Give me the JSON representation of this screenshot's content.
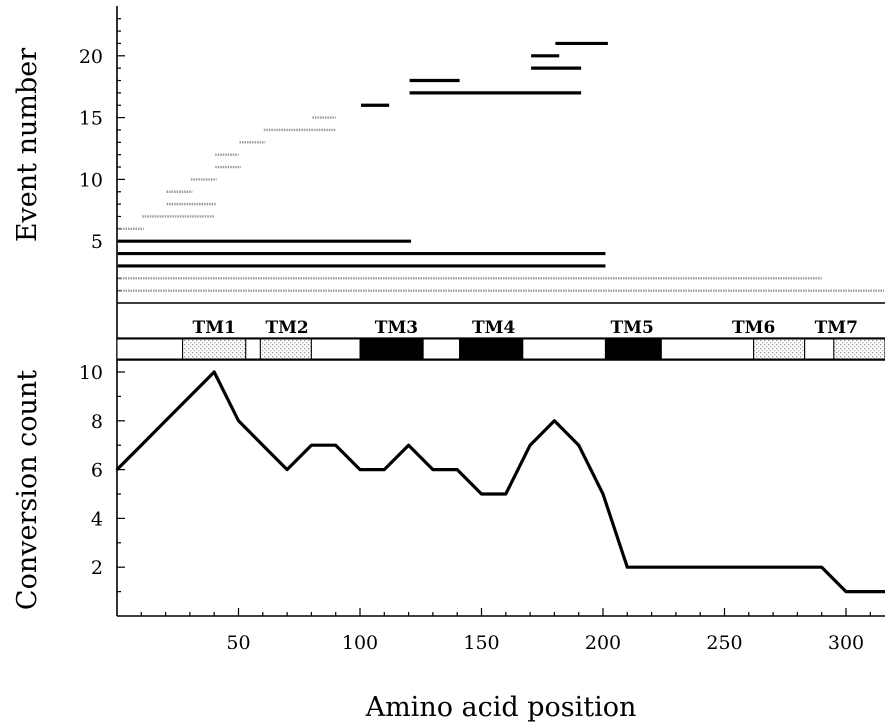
{
  "chart_data": [
    {
      "type": "line",
      "role": "event-segments",
      "ylabel": "Event number",
      "xlim": [
        0,
        317
      ],
      "ylim": [
        0,
        24
      ],
      "yticks": [
        "5",
        "10",
        "15",
        "20"
      ],
      "ytick_values": [
        5,
        10,
        15,
        20
      ],
      "grid": false,
      "dark_events": [
        {
          "event": 21,
          "x": [
            180,
            202
          ]
        },
        {
          "event": 20,
          "x": [
            170,
            182
          ]
        },
        {
          "event": 19,
          "x": [
            170,
            191
          ]
        },
        {
          "event": 18,
          "x": [
            120,
            141
          ]
        },
        {
          "event": 17,
          "x": [
            120,
            191
          ]
        },
        {
          "event": 16,
          "x": [
            100,
            112
          ]
        },
        {
          "event": 5,
          "x": [
            0,
            121
          ]
        },
        {
          "event": 4,
          "x": [
            0,
            201
          ]
        },
        {
          "event": 3,
          "x": [
            0,
            201
          ]
        }
      ],
      "light_events": [
        {
          "event": 15,
          "x": [
            80,
            90
          ]
        },
        {
          "event": 14,
          "x": [
            60,
            90
          ]
        },
        {
          "event": 13,
          "x": [
            50,
            61
          ]
        },
        {
          "event": 12,
          "x": [
            40,
            50
          ]
        },
        {
          "event": 11,
          "x": [
            40,
            51
          ]
        },
        {
          "event": 10,
          "x": [
            30,
            41
          ]
        },
        {
          "event": 9,
          "x": [
            20,
            31
          ]
        },
        {
          "event": 8,
          "x": [
            20,
            41
          ]
        },
        {
          "event": 7,
          "x": [
            10,
            40
          ]
        },
        {
          "event": 6,
          "x": [
            0,
            11
          ]
        },
        {
          "event": 2,
          "x": [
            0,
            290
          ]
        },
        {
          "event": 1,
          "x": [
            0,
            317
          ]
        }
      ]
    },
    {
      "type": "line",
      "role": "conversion-count",
      "xlabel": "Amino acid position",
      "ylabel": "Conversion count",
      "xlim": [
        0,
        317
      ],
      "ylim": [
        0,
        10.5
      ],
      "xticks": [
        "50",
        "100",
        "150",
        "200",
        "250",
        "300"
      ],
      "xtick_values": [
        50,
        100,
        150,
        200,
        250,
        300
      ],
      "yticks": [
        "2",
        "4",
        "6",
        "8",
        "10"
      ],
      "ytick_values": [
        2,
        4,
        6,
        8,
        10
      ],
      "grid": false,
      "series": [
        {
          "x": [
            0,
            10,
            20,
            30,
            40,
            50,
            60,
            70,
            80,
            90,
            100,
            110,
            120,
            130,
            140,
            150,
            160,
            170,
            180,
            190,
            200,
            210,
            220,
            230,
            240,
            250,
            260,
            270,
            280,
            290,
            300,
            310,
            317
          ],
          "values": [
            6,
            7,
            8,
            9,
            10,
            8,
            7,
            6,
            7,
            7,
            6,
            6,
            7,
            6,
            6,
            5,
            5,
            7,
            8,
            7,
            5,
            2,
            2,
            2,
            2,
            2,
            2,
            2,
            2,
            2,
            1,
            1,
            1
          ]
        }
      ]
    }
  ],
  "domains": {
    "labels": [
      {
        "text": "TM1",
        "x": 40
      },
      {
        "text": "TM2",
        "x": 70
      },
      {
        "text": "TM3",
        "x": 115
      },
      {
        "text": "TM4",
        "x": 155
      },
      {
        "text": "TM5",
        "x": 212
      },
      {
        "text": "TM6",
        "x": 262
      },
      {
        "text": "TM7",
        "x": 296
      }
    ],
    "segments": [
      {
        "start": 0,
        "end": 27,
        "fill": "white"
      },
      {
        "start": 27,
        "end": 53,
        "fill": "dotted"
      },
      {
        "start": 53,
        "end": 59,
        "fill": "white"
      },
      {
        "start": 59,
        "end": 80,
        "fill": "dotted"
      },
      {
        "start": 80,
        "end": 100,
        "fill": "white"
      },
      {
        "start": 100,
        "end": 126,
        "fill": "black"
      },
      {
        "start": 126,
        "end": 141,
        "fill": "white"
      },
      {
        "start": 141,
        "end": 167,
        "fill": "black"
      },
      {
        "start": 167,
        "end": 201,
        "fill": "white"
      },
      {
        "start": 201,
        "end": 224,
        "fill": "black"
      },
      {
        "start": 224,
        "end": 262,
        "fill": "white"
      },
      {
        "start": 262,
        "end": 283,
        "fill": "dotted"
      },
      {
        "start": 283,
        "end": 295,
        "fill": "white"
      },
      {
        "start": 295,
        "end": 317,
        "fill": "dotted"
      }
    ]
  },
  "colors": {
    "dark_line": "#000000",
    "light_line": "#9a9a9a",
    "black_domain": "#000000",
    "dotted_domain": "#d6d6d6"
  }
}
